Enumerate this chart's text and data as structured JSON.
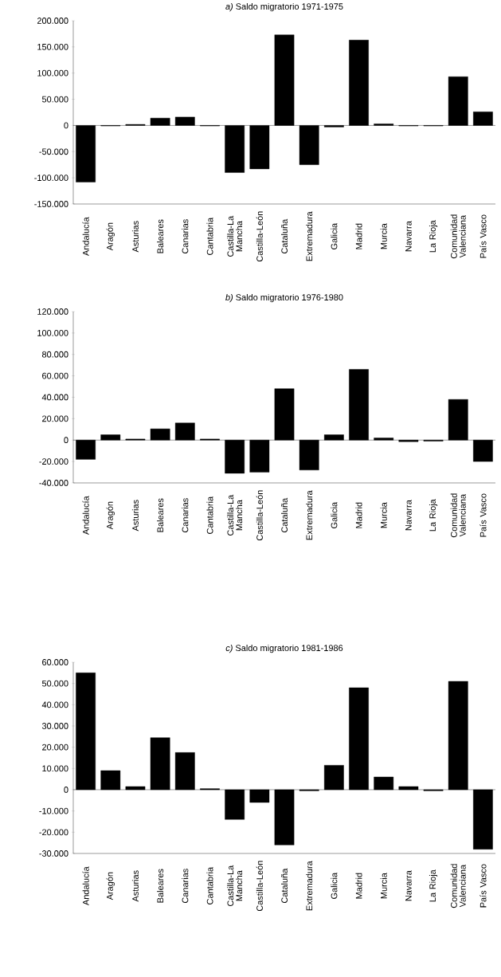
{
  "chart_data": [
    {
      "type": "bar",
      "title": "*a)*  Saldo migratorio 1971-1975",
      "color": "#000000",
      "categories": [
        "Andalucía",
        "Aragón",
        "Asturias",
        "Baleares",
        "Canarias",
        "Cantabria",
        "Castilla-La Mancha",
        "Castilla-León",
        "Cataluña",
        "Extremadura",
        "Galicia",
        "Madrid",
        "Murcia",
        "Navarra",
        "La Rioja",
        "Comunidad Valenciana",
        "País Vasco"
      ],
      "values": [
        -108000,
        -1000,
        2000,
        14000,
        16000,
        -1000,
        -90000,
        -83000,
        173000,
        -75000,
        -3000,
        163000,
        3000,
        -1000,
        -1000,
        93000,
        26000
      ],
      "ylim": [
        -150000,
        200000
      ],
      "yticks": [
        {
          "value": -150000,
          "label": "-150.000"
        },
        {
          "value": -100000,
          "label": "-100.000"
        },
        {
          "value": -50000,
          "label": "-50.000"
        },
        0,
        {
          "value": 50000,
          "label": "50.000"
        },
        {
          "value": 100000,
          "label": "100.000"
        },
        {
          "value": 150000,
          "label": "150.000"
        },
        {
          "value": 200000,
          "label": "200.000"
        }
      ]
    },
    {
      "type": "bar",
      "title": "*b)*  Saldo migratorio 1976-1980",
      "color": "#000000",
      "categories": [
        "Andalucía",
        "Aragón",
        "Asturias",
        "Baleares",
        "Canarias",
        "Cantabria",
        "Castilla-La Mancha",
        "Castilla-León",
        "Cataluña",
        "Extremadura",
        "Galicia",
        "Madrid",
        "Murcia",
        "Navarra",
        "La Rioja",
        "Comunidad Valenciana",
        "País Vasco"
      ],
      "values": [
        -18000,
        5000,
        1000,
        10500,
        16000,
        1000,
        -31000,
        -30000,
        48000,
        -28000,
        5000,
        66000,
        2000,
        -1500,
        -1000,
        38000,
        -20000
      ],
      "ylim": [
        -40000,
        120000
      ],
      "yticks": [
        {
          "value": -40000,
          "label": "-40.000"
        },
        {
          "value": -20000,
          "label": "-20.000"
        },
        0,
        {
          "value": 20000,
          "label": "20.000"
        },
        {
          "value": 40000,
          "label": "40.000"
        },
        {
          "value": 60000,
          "label": "60.000"
        },
        {
          "value": 80000,
          "label": "80.000"
        },
        {
          "value": 100000,
          "label": "100.000"
        },
        {
          "value": 120000,
          "label": "120.000"
        }
      ]
    },
    {
      "type": "bar",
      "title": "*c)*  Saldo migratorio 1981-1986",
      "color": "#000000",
      "categories": [
        "Andalucía",
        "Aragón",
        "Asturias",
        "Baleares",
        "Canarias",
        "Cantabria",
        "Castilla-La Mancha",
        "Castilla-León",
        "Cataluña",
        "Extremadura",
        "Galicia",
        "Madrid",
        "Murcia",
        "Navarra",
        "La Rioja",
        "Comunidad Valenciana",
        "País Vasco"
      ],
      "values": [
        55000,
        9000,
        1500,
        24500,
        17500,
        500,
        -14000,
        -6000,
        -26000,
        -500,
        11500,
        48000,
        6000,
        1500,
        -500,
        51000,
        -28000
      ],
      "ylim": [
        -30000,
        60000
      ],
      "yticks": [
        {
          "value": -30000,
          "label": "-30.000"
        },
        {
          "value": -20000,
          "label": "-20.000"
        },
        {
          "value": -10000,
          "label": "-10.000"
        },
        0,
        {
          "value": 10000,
          "label": "10.000"
        },
        {
          "value": 20000,
          "label": "20.000"
        },
        {
          "value": 30000,
          "label": "30.000"
        },
        {
          "value": 40000,
          "label": "40.000"
        },
        {
          "value": 50000,
          "label": "50.000"
        },
        {
          "value": 60000,
          "label": "60.000"
        }
      ]
    }
  ]
}
